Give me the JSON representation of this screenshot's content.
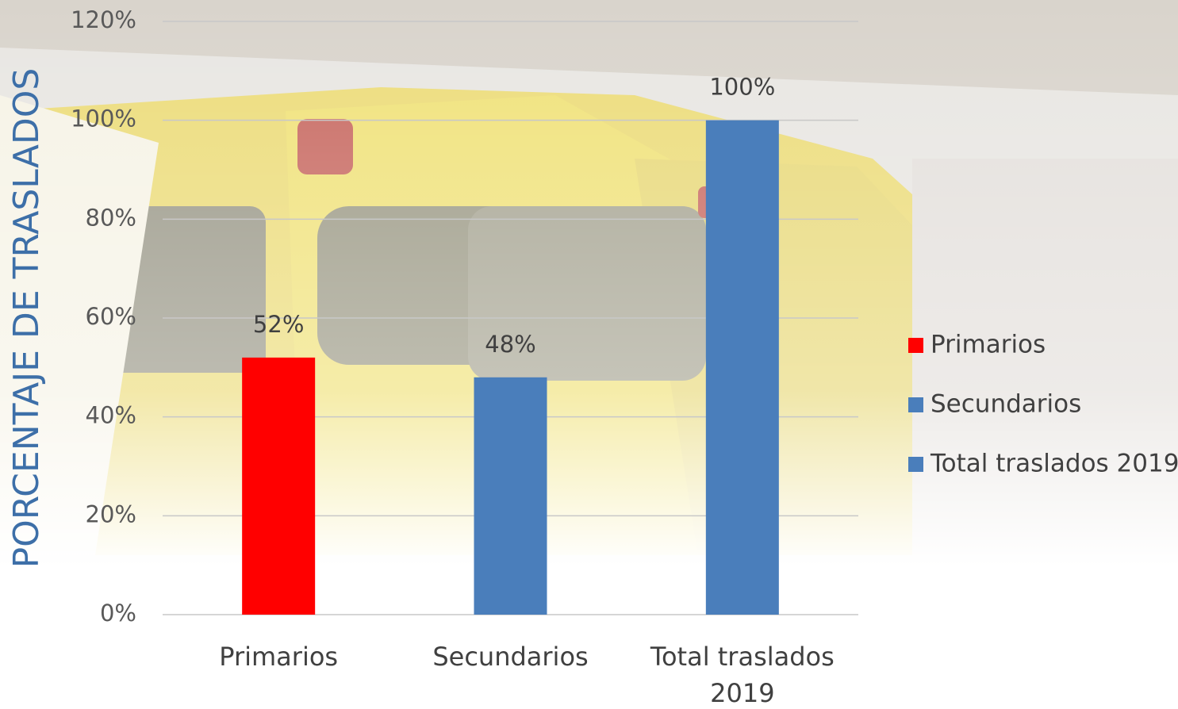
{
  "chart_data": {
    "type": "bar",
    "y_label": "PORCENTAJE DE TRASLADOS",
    "categories": [
      "Primarios",
      "Secundarios",
      "Total traslados 2019"
    ],
    "values": [
      52,
      48,
      100
    ],
    "value_labels": [
      "52%",
      "48%",
      "100%"
    ],
    "colors": [
      "#ff0000",
      "#4a7ebb",
      "#4a7ebb"
    ],
    "ylim": [
      0,
      120
    ],
    "yticks": [
      {
        "value": 0,
        "label": "0%"
      },
      {
        "value": 20,
        "label": "20%"
      },
      {
        "value": 40,
        "label": "40%"
      },
      {
        "value": 60,
        "label": "60%"
      },
      {
        "value": 80,
        "label": "80%"
      },
      {
        "value": 100,
        "label": "100%"
      },
      {
        "value": 120,
        "label": "120%"
      }
    ],
    "grid": true,
    "legend": "right"
  }
}
